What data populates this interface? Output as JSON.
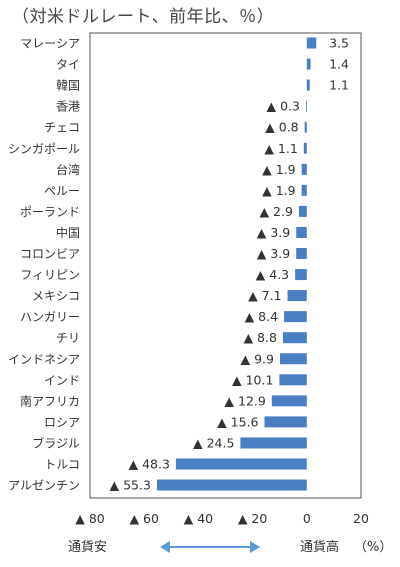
{
  "header": {
    "units_note": "（対米ドルレート、前年比、％）"
  },
  "footer": {
    "left_label": "通貨安",
    "right_label": "通貨高",
    "unit_label": "（%）"
  },
  "colors": {
    "bar": "#4a7ec2",
    "arrow": "#5b9bd5",
    "text": "#333333",
    "axis": "#555555"
  },
  "chart_data": {
    "type": "bar",
    "orientation": "horizontal",
    "categories": [
      "マレーシア",
      "タイ",
      "韓国",
      "香港",
      "チェコ",
      "シンガポール",
      "台湾",
      "ペルー",
      "ポーランド",
      "中国",
      "コロンビア",
      "フィリピン",
      "メキシコ",
      "ハンガリー",
      "チリ",
      "インドネシア",
      "インド",
      "南アフリカ",
      "ロシア",
      "ブラジル",
      "トルコ",
      "アルゼンチン"
    ],
    "values": [
      3.5,
      1.4,
      1.1,
      -0.3,
      -0.8,
      -1.1,
      -1.9,
      -1.9,
      -2.9,
      -3.9,
      -3.9,
      -4.3,
      -7.1,
      -8.4,
      -8.8,
      -9.9,
      -10.1,
      -12.9,
      -15.6,
      -24.5,
      -48.3,
      -55.3
    ],
    "value_labels": [
      "3.5",
      "1.4",
      "1.1",
      "▲ 0.3",
      "▲ 0.8",
      "▲ 1.1",
      "▲ 1.9",
      "▲ 1.9",
      "▲ 2.9",
      "▲ 3.9",
      "▲ 3.9",
      "▲ 4.3",
      "▲ 7.1",
      "▲ 8.4",
      "▲ 8.8",
      "▲ 9.9",
      "▲ 10.1",
      "▲ 12.9",
      "▲ 15.6",
      "▲ 24.5",
      "▲ 48.3",
      "▲ 55.3"
    ],
    "xlim": [
      -80,
      20
    ],
    "xticks": [
      -80,
      -60,
      -40,
      -20,
      0,
      20
    ],
    "xtick_labels": [
      "▲ 80",
      "▲ 60",
      "▲ 40",
      "▲ 20",
      "0",
      "20"
    ],
    "grid": false,
    "legend": "none"
  }
}
